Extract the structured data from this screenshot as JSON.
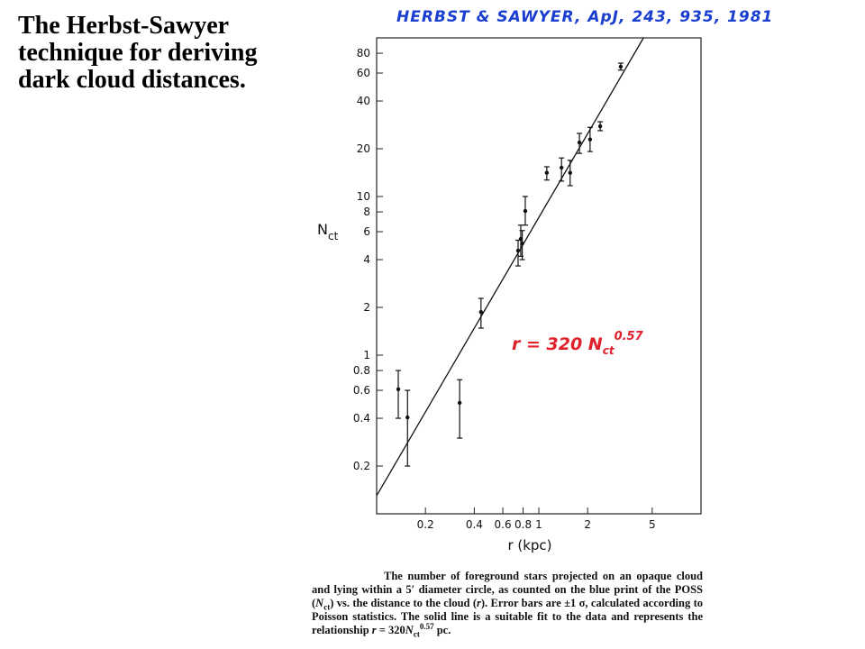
{
  "title": "The Herbst-Sawyer technique for deriving dark cloud distances.",
  "citation": "HERBST & SAWYER, ApJ, 243, 935, 1981",
  "chart_data": {
    "type": "scatter",
    "log_x": true,
    "log_y": true,
    "xlabel": "r (kpc)",
    "ylabel": "N",
    "ylabel_sub": "ct",
    "annotation": {
      "base": "r = 320 N",
      "sub": "ct",
      "sup": "0.57",
      "color": "#e0202a"
    },
    "xlim": [
      0.1,
      10
    ],
    "ylim": [
      0.1,
      100
    ],
    "xticks": [
      0.2,
      0.4,
      0.6,
      0.8,
      1,
      2,
      5
    ],
    "yticks": [
      0.2,
      0.4,
      0.6,
      0.8,
      1,
      2,
      4,
      6,
      8,
      10,
      20,
      40,
      60,
      80
    ],
    "series": [
      {
        "color": "#111111",
        "x": [
          0.136,
          0.155,
          0.325,
          0.44,
          0.745,
          0.774,
          0.79,
          0.825,
          1.12,
          1.38,
          1.56,
          1.78,
          2.07,
          2.39,
          3.2
        ],
        "values": [
          0.61,
          0.405,
          0.5,
          1.87,
          4.56,
          5.4,
          5.05,
          8.1,
          14.1,
          15.2,
          14.1,
          21.9,
          22.9,
          27.7,
          65.8
        ],
        "lower": [
          0.4,
          0.2,
          0.3,
          1.48,
          3.65,
          4.2,
          4.0,
          6.6,
          12.7,
          12.5,
          11.7,
          18.7,
          19.2,
          26,
          62.6
        ],
        "upper": [
          0.8,
          0.6,
          0.7,
          2.28,
          5.3,
          6.6,
          6.1,
          10,
          15.4,
          17.5,
          16.9,
          25,
          27.3,
          29.6,
          69.3
        ]
      }
    ],
    "fit_line": {
      "x": [
        0.1,
        4.42
      ],
      "y": [
        0.13,
        100
      ],
      "color": "#111111"
    }
  },
  "caption": [
    {
      "text": "The number of foreground stars projected on an opaque cloud and lying within a 5′ diameter circle, as counted on the blue print of the POSS ("
    },
    {
      "text": "N",
      "style": "i"
    },
    {
      "text": "ct",
      "style": "sub"
    },
    {
      "text": ") vs. the distance to the cloud ("
    },
    {
      "text": "r",
      "style": "i"
    },
    {
      "text": "). Error bars are ±1 σ, calculated according to Poisson statistics. The solid line is a suitable fit to the data and represents the relationship "
    },
    {
      "text": "r",
      "style": "i"
    },
    {
      "text": " = 320"
    },
    {
      "text": "N",
      "style": "i"
    },
    {
      "text": "ct",
      "style": "sub"
    },
    {
      "text": "0.57",
      "style": "sup"
    },
    {
      "text": " pc."
    }
  ]
}
